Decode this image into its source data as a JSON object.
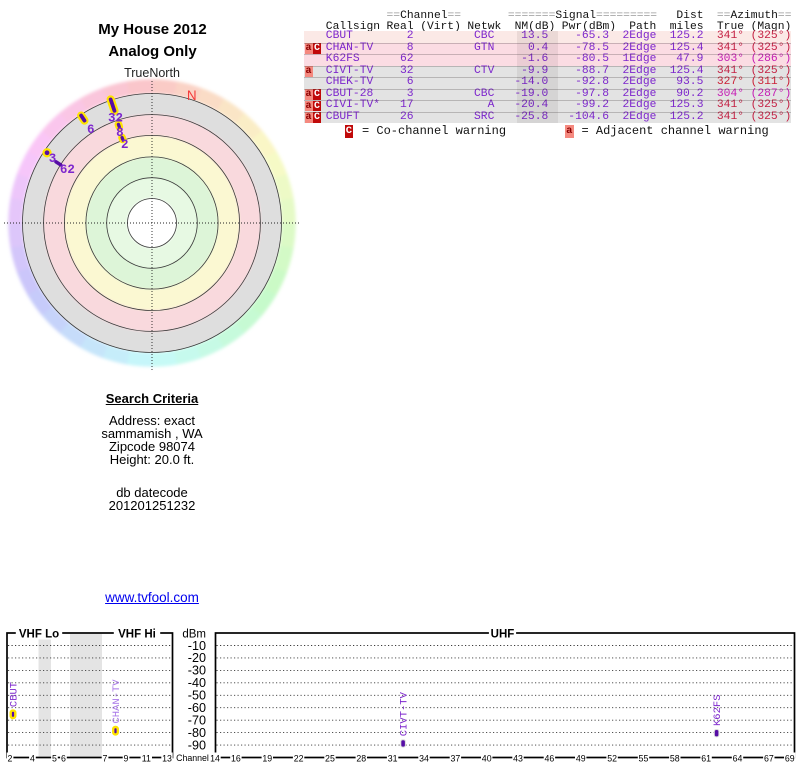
{
  "header": {
    "title_line1": "My House 2012",
    "title_line2": "Analog Only"
  },
  "radar": {
    "orientation_label": "TrueNorth",
    "magnetic_north_label": "N",
    "magnetic_north_azimuth_deg": 17.3,
    "north_label_color": "#f43b3b",
    "marker_fill": "#560da5",
    "marker_outline": "#ffe400",
    "marker_label_color": "#7d26cd",
    "markers": [
      {
        "channel": "2",
        "azimuth_deg": 340.7,
        "radius": 89.6,
        "w": 5.5,
        "len": 7.5,
        "outline": true,
        "show_label": true,
        "label_az": 341.0,
        "label_r": 84
      },
      {
        "channel": "8",
        "azimuth_deg": 341.2,
        "radius": 102.9,
        "w": 5.5,
        "len": 8,
        "outline": true,
        "show_label": true,
        "label_az": 340.7,
        "label_r": 97
      },
      {
        "channel": "32",
        "azimuth_deg": 341.5,
        "radius": 124.3,
        "w": 6,
        "len": 18,
        "outline": true,
        "show_label": true,
        "label_az": 341.0,
        "label_r": 112
      },
      {
        "channel": "6",
        "azimuth_deg": 326.6,
        "radius": 125.7,
        "w": 6,
        "len": 12,
        "outline": true,
        "show_label": true,
        "label_az": 327.0,
        "label_r": 112.5
      },
      {
        "channel": "3",
        "azimuth_deg": 303.8,
        "radius": 126.3,
        "w": 7,
        "len": 7,
        "outline": true,
        "show_label": true,
        "label_az": 303.3,
        "label_r": 119
      },
      {
        "channel": "62",
        "azimuth_deg": 302.5,
        "radius": 111,
        "w": 3.5,
        "len": 9,
        "outline": false,
        "show_label": true,
        "label_az": 302.7,
        "label_r": 100.5
      }
    ]
  },
  "search": {
    "heading": "Search Criteria",
    "lines": [
      "Address: exact",
      "sammamish , WA",
      "Zipcode 98074",
      "Height: 20.0 ft."
    ],
    "db_lines": [
      "db datecode",
      "201201251232"
    ],
    "link": "www.tvfool.com"
  },
  "table": {
    "header_top": {
      "channel": {
        "prefix": "==",
        "word": "Channel",
        "suffix": "=="
      },
      "signal": {
        "prefix": "=======",
        "word": "Signal",
        "suffix": "========="
      },
      "dist": {
        "word": "Dist"
      },
      "azimuth": {
        "prefix": "==",
        "word": "Azimuth",
        "suffix": "=="
      }
    },
    "header_cols": {
      "callsign": "Callsign",
      "real": "Real",
      "virt": "(Virt)",
      "netwk": "Netwk",
      "nm": "NM(dB)",
      "pwr": "Pwr(dBm)",
      "path": "Path",
      "miles": "miles",
      "true": "True",
      "magn": "(Magn)"
    },
    "text_color": "#7d26cd",
    "rows": [
      {
        "badges": [],
        "callsign": "CBUT",
        "real": "2",
        "netwk": "CBC",
        "nm": "13.5",
        "pwr": "-65.3",
        "path": "2Edge",
        "miles": "125.2",
        "true": "341°",
        "magn": "(325°)",
        "row_color": "#fbe9e6",
        "azimuth_color": "#c42144"
      },
      {
        "badges": [
          "a",
          "C"
        ],
        "callsign": "CHAN-TV",
        "real": "8",
        "netwk": "GTN",
        "nm": "0.4",
        "pwr": "-78.5",
        "path": "2Edge",
        "miles": "125.4",
        "true": "341°",
        "magn": "(325°)",
        "row_color": "#fbdce3",
        "azimuth_color": "#c42144"
      },
      {
        "badges": [],
        "callsign": "K62FS",
        "real": "62",
        "netwk": "",
        "nm": "-1.6",
        "pwr": "-80.5",
        "path": "1Edge",
        "miles": "47.9",
        "true": "303°",
        "magn": "(286°)",
        "row_color": "#fbdce3",
        "azimuth_color": "#c51cb4"
      },
      {
        "badges": [
          "a"
        ],
        "callsign": "CIVT-TV",
        "real": "32",
        "netwk": "CTV",
        "nm": "-9.9",
        "pwr": "-88.7",
        "path": "2Edge",
        "miles": "125.4",
        "true": "341°",
        "magn": "(325°)",
        "row_color": "#e3e3e3",
        "azimuth_color": "#c42144"
      },
      {
        "badges": [],
        "callsign": "CHEK-TV",
        "real": "6",
        "netwk": "",
        "nm": "-14.0",
        "pwr": "-92.8",
        "path": "2Edge",
        "miles": "93.5",
        "true": "327°",
        "magn": "(311°)",
        "row_color": "#e3e3e3",
        "azimuth_color": "#cb2136"
      },
      {
        "badges": [
          "a",
          "C"
        ],
        "callsign": "CBUT-28",
        "real": "3",
        "netwk": "CBC",
        "nm": "-19.0",
        "pwr": "-97.8",
        "path": "2Edge",
        "miles": "90.2",
        "true": "304°",
        "magn": "(287°)",
        "row_color": "#e3e3e3",
        "azimuth_color": "#c51cb4"
      },
      {
        "badges": [
          "a",
          "C"
        ],
        "callsign": "CIVI-TV*",
        "real": "17",
        "netwk": "A",
        "nm": "-20.4",
        "pwr": "-99.2",
        "path": "2Edge",
        "miles": "125.3",
        "true": "341°",
        "magn": "(325°)",
        "row_color": "#e3e3e3",
        "azimuth_color": "#c42144"
      },
      {
        "badges": [
          "a",
          "C"
        ],
        "callsign": "CBUFT",
        "real": "26",
        "netwk": "SRC",
        "nm": "-25.8",
        "pwr": "-104.6",
        "path": "2Edge",
        "miles": "125.2",
        "true": "341°",
        "magn": "(325°)",
        "row_color": "#e3e3e3",
        "azimuth_color": "#c42144"
      }
    ],
    "legend": {
      "co": {
        "badge": "C",
        "text": "= Co-channel warning"
      },
      "adj": {
        "badge": "a",
        "text": "= Adjacent channel warning"
      }
    }
  },
  "spectrum": {
    "dbm_title": "dBm",
    "channel_title": "Channel",
    "band_labels": {
      "vhf_lo": "VHF Lo",
      "vhf_hi": "VHF Hi",
      "uhf": "UHF"
    },
    "dbm_ticks": [
      "-10",
      "-20",
      "-30",
      "-40",
      "-50",
      "-60",
      "-70",
      "-80",
      "-90"
    ],
    "vhf_channel_ticks": [
      "2",
      "4",
      "5",
      "6",
      "7",
      "9",
      "11",
      "13"
    ],
    "uhf_channel_ticks": [
      "14",
      "16",
      "19",
      "22",
      "25",
      "28",
      "31",
      "34",
      "37",
      "40",
      "43",
      "46",
      "49",
      "52",
      "55",
      "58",
      "61",
      "64",
      "67",
      "69"
    ],
    "stations": [
      {
        "callsign": "CBUT",
        "channel": 2,
        "pwr_dbm": -65.3,
        "highlight": true,
        "label_color": "#7d26cd"
      },
      {
        "callsign": "CHAN-TV",
        "channel": 8,
        "pwr_dbm": -78.5,
        "highlight": true,
        "label_color": "#a876e8"
      },
      {
        "callsign": "CIVT-TV",
        "channel": 32,
        "pwr_dbm": -88.7,
        "highlight": false,
        "label_color": "#7d26cd"
      },
      {
        "callsign": "K62FS",
        "channel": 62,
        "pwr_dbm": -80.5,
        "highlight": false,
        "label_color": "#7d26cd"
      }
    ]
  },
  "chart_data": [
    {
      "type": "scatter",
      "variant": "polar-radar",
      "title": "My House 2012",
      "subtitle": "Analog Only",
      "orientation": "TrueNorth",
      "legend_position": "none",
      "grid": "concentric-rings-with-crosshair",
      "points": [
        {
          "callsign": "CBUT",
          "channel": 2,
          "azimuth_true_deg": 341,
          "nm_db": 13.5
        },
        {
          "callsign": "CHAN-TV",
          "channel": 8,
          "azimuth_true_deg": 341,
          "nm_db": 0.4
        },
        {
          "callsign": "K62FS",
          "channel": 62,
          "azimuth_true_deg": 303,
          "nm_db": -1.6
        },
        {
          "callsign": "CIVT-TV",
          "channel": 32,
          "azimuth_true_deg": 341,
          "nm_db": -9.9
        },
        {
          "callsign": "CHEK-TV",
          "channel": 6,
          "azimuth_true_deg": 327,
          "nm_db": -14.0
        },
        {
          "callsign": "CBUT-28",
          "channel": 3,
          "azimuth_true_deg": 304,
          "nm_db": -19.0
        },
        {
          "callsign": "CIVI-TV",
          "channel": 17,
          "azimuth_true_deg": 341,
          "nm_db": -20.4
        },
        {
          "callsign": "CBUFT",
          "channel": 26,
          "azimuth_true_deg": 341,
          "nm_db": -25.8
        }
      ]
    },
    {
      "type": "scatter",
      "variant": "rf-spectrum",
      "xlabel": "Channel",
      "ylabel": "dBm",
      "ylim": [
        -100,
        0
      ],
      "yticks": [
        -10,
        -20,
        -30,
        -40,
        -50,
        -60,
        -70,
        -80,
        -90
      ],
      "x_bands": [
        "VHF Lo",
        "VHF Hi",
        "UHF"
      ],
      "points": [
        {
          "callsign": "CBUT",
          "channel": 2,
          "pwr_dbm": -65.3
        },
        {
          "callsign": "CHAN-TV",
          "channel": 8,
          "pwr_dbm": -78.5
        },
        {
          "callsign": "CIVT-TV",
          "channel": 32,
          "pwr_dbm": -88.7
        },
        {
          "callsign": "K62FS",
          "channel": 62,
          "pwr_dbm": -80.5
        }
      ]
    }
  ]
}
